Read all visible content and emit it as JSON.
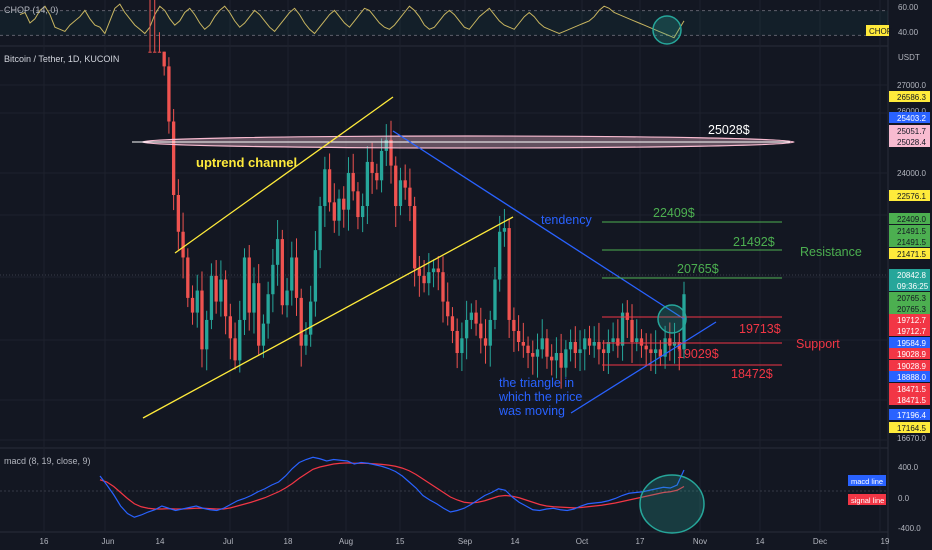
{
  "header": {
    "chop_label": "CHOP (14, 0)",
    "symbol_label": "Bitcoin / Tether, 1D, KUCOIN",
    "macd_label": "macd (8, 19, close, 9)"
  },
  "price_axis": {
    "currency": "USDT",
    "ticks": [
      "27000.0",
      "26000.0",
      "24000.0",
      "23000.0",
      "17000.0",
      "16670.0"
    ],
    "tags": [
      {
        "text": "26586.3",
        "bg": "#ffeb3b",
        "fg": "#131722"
      },
      {
        "text": "25403.2",
        "bg": "#2962ff",
        "fg": "#ffffff"
      },
      {
        "text": "25051.7",
        "bg": "#f8bbd0",
        "fg": "#131722"
      },
      {
        "text": "25028.4",
        "bg": "#f8bbd0",
        "fg": "#131722"
      },
      {
        "text": "22576.1",
        "bg": "#ffeb3b",
        "fg": "#131722"
      },
      {
        "text": "22409.0",
        "bg": "#4caf50",
        "fg": "#131722"
      },
      {
        "text": "21491.5",
        "bg": "#4caf50",
        "fg": "#131722"
      },
      {
        "text": "21491.5",
        "bg": "#4caf50",
        "fg": "#131722"
      },
      {
        "text": "21471.5",
        "bg": "#ffeb3b",
        "fg": "#131722"
      },
      {
        "text": "20842.8",
        "bg": "#26a69a",
        "fg": "#ffffff"
      },
      {
        "text": "09:36:25",
        "bg": "#26a69a",
        "fg": "#ffffff"
      },
      {
        "text": "20765.3",
        "bg": "#4caf50",
        "fg": "#131722"
      },
      {
        "text": "20765.3",
        "bg": "#4caf50",
        "fg": "#131722"
      },
      {
        "text": "19712.7",
        "bg": "#f23645",
        "fg": "#ffffff"
      },
      {
        "text": "19712.7",
        "bg": "#f23645",
        "fg": "#ffffff"
      },
      {
        "text": "19584.9",
        "bg": "#2962ff",
        "fg": "#ffffff"
      },
      {
        "text": "19028.9",
        "bg": "#f23645",
        "fg": "#ffffff"
      },
      {
        "text": "19028.9",
        "bg": "#f23645",
        "fg": "#ffffff"
      },
      {
        "text": "18888.0",
        "bg": "#2962ff",
        "fg": "#ffffff"
      },
      {
        "text": "18471.5",
        "bg": "#f23645",
        "fg": "#ffffff"
      },
      {
        "text": "18471.5",
        "bg": "#f23645",
        "fg": "#ffffff"
      },
      {
        "text": "17196.4",
        "bg": "#2962ff",
        "fg": "#ffffff"
      },
      {
        "text": "17164.5",
        "bg": "#ffeb3b",
        "fg": "#131722"
      }
    ]
  },
  "chop_axis": {
    "ticks": [
      "60.00",
      "40.00"
    ],
    "tag": {
      "text": "CHOP",
      "bg": "#ffeb3b",
      "fg": "#131722"
    }
  },
  "macd_axis": {
    "ticks": [
      "400.0",
      "0.0",
      "-400.0"
    ],
    "legend": [
      {
        "text": "macd line",
        "bg": "#2962ff",
        "fg": "#ffffff"
      },
      {
        "text": "signal line",
        "bg": "#f23645",
        "fg": "#ffffff"
      }
    ]
  },
  "time_axis": {
    "ticks": [
      "16",
      "Jun",
      "14",
      "Jul",
      "18",
      "Aug",
      "15",
      "Sep",
      "14",
      "Oct",
      "17",
      "Nov",
      "14",
      "Dec",
      "19"
    ]
  },
  "annotations": {
    "uptrend": "uptrend channel",
    "tendency": "tendency",
    "resistance": "Resistance",
    "support": "Support",
    "triangle": [
      "the triangle in",
      "which the price",
      "was moving"
    ],
    "levels": {
      "l25028": "25028$",
      "l22409": "22409$",
      "l21492": "21492$",
      "l20765": "20765$",
      "l19713": "19713$",
      "l19029": "19029$",
      "l18472": "18472$"
    }
  },
  "colors": {
    "background": "#131722",
    "up": "#26a69a",
    "down": "#ef5350",
    "channel": "#ffeb3b",
    "trend": "#2962ff",
    "resistance": "#4caf50",
    "support": "#f23645",
    "chop": "#c8b560"
  },
  "chart_data": {
    "type": "candlestick",
    "symbol": "Bitcoin / Tether, 1D, KUCOIN",
    "ylim": [
      16670,
      27500
    ],
    "resistance_levels": [
      22409,
      21492,
      20765
    ],
    "support_levels": [
      19713,
      19029,
      18472
    ],
    "supply_zone": 25028,
    "series_close": [
      29900,
      29400,
      28500,
      27000,
      25500,
      23500,
      22500,
      21800,
      20700,
      20300,
      20900,
      19300,
      20100,
      21300,
      20600,
      21200,
      20200,
      19600,
      19000,
      20100,
      21800,
      20300,
      21100,
      19400,
      20000,
      20800,
      21600,
      22300,
      20500,
      20900,
      21800,
      20700,
      19400,
      19700,
      20600,
      22000,
      23200,
      24200,
      23300,
      22800,
      23400,
      23100,
      24100,
      23600,
      22900,
      23200,
      24400,
      24100,
      23900,
      24700,
      25000,
      24300,
      23200,
      23900,
      23700,
      23200,
      21500,
      21300,
      21100,
      21400,
      21500,
      21400,
      20600,
      20200,
      19800,
      19200,
      19600,
      20100,
      20300,
      20000,
      19600,
      19400,
      20100,
      21200,
      22500,
      22600,
      20100,
      19800,
      19500,
      19400,
      19200,
      19100,
      19300,
      19600,
      19100,
      19000,
      19200,
      18800,
      19300,
      19500,
      19200,
      19300,
      19600,
      19400,
      19500,
      19300,
      19200,
      19500,
      19600,
      19400,
      20300,
      20100,
      19500,
      19600,
      19400,
      19300,
      19200,
      19300,
      19100,
      19600,
      19400,
      19500,
      19300,
      20800
    ],
    "macd_line": [
      200,
      80,
      -50,
      -200,
      -300,
      -350,
      -320,
      -280,
      -250,
      -200,
      -230,
      -260,
      -240,
      -220,
      -200,
      -230,
      -250,
      -260,
      -230,
      -180,
      -130,
      -100,
      -60,
      -10,
      30,
      80,
      120,
      200,
      300,
      380,
      420,
      450,
      430,
      400,
      420,
      410,
      400,
      360,
      380,
      370,
      350,
      330,
      300,
      260,
      200,
      120,
      40,
      -60,
      -120,
      -170,
      -230,
      -280,
      -260,
      -230,
      -180,
      -120,
      -60,
      -20,
      30,
      10,
      -80,
      -150,
      -200,
      -250,
      -260,
      -240,
      -230,
      -250,
      -260,
      -240,
      -200,
      -170,
      -160,
      -150,
      -130,
      -100,
      -60,
      -30,
      -20,
      -10,
      10,
      30,
      50,
      40,
      80,
      280
    ],
    "signal_line": [
      150,
      120,
      60,
      -20,
      -100,
      -170,
      -210,
      -230,
      -240,
      -240,
      -235,
      -240,
      -240,
      -235,
      -230,
      -230,
      -235,
      -240,
      -240,
      -225,
      -200,
      -175,
      -150,
      -120,
      -90,
      -50,
      -10,
      40,
      100,
      170,
      230,
      290,
      320,
      340,
      360,
      370,
      375,
      370,
      370,
      368,
      362,
      355,
      345,
      330,
      305,
      270,
      220,
      160,
      100,
      40,
      -20,
      -80,
      -120,
      -150,
      -160,
      -150,
      -130,
      -100,
      -70,
      -60,
      -70,
      -90,
      -120,
      -150,
      -180,
      -200,
      -210,
      -215,
      -220,
      -225,
      -220,
      -210,
      -200,
      -190,
      -175,
      -160,
      -140,
      -120,
      -100,
      -80,
      -60,
      -40,
      -20,
      -10,
      10,
      60
    ],
    "chop": [
      58,
      60,
      50,
      54,
      62,
      66,
      58,
      46,
      44,
      42,
      48,
      52,
      56,
      62,
      54,
      48,
      46,
      40,
      52,
      64,
      68,
      60,
      54,
      48,
      44,
      40,
      46,
      58,
      66,
      62,
      54,
      48,
      52,
      60,
      64,
      58,
      50,
      44,
      48,
      56,
      62,
      66,
      60,
      52,
      46,
      50,
      56,
      62,
      58,
      52,
      46,
      42,
      48,
      54,
      60,
      64,
      58,
      50,
      44,
      40,
      46,
      52,
      58,
      62,
      56,
      50,
      46,
      52,
      58,
      64,
      62,
      56,
      50,
      46,
      44,
      48,
      54,
      60,
      66,
      62,
      56,
      48,
      44,
      46,
      52,
      58,
      62,
      58,
      52,
      46,
      44,
      50,
      56,
      60,
      64,
      58,
      52,
      48,
      46,
      44,
      50,
      56,
      60,
      56,
      50,
      46,
      44,
      42,
      40,
      42,
      44,
      46,
      48,
      50,
      52,
      56,
      62,
      66,
      64,
      60,
      58,
      56,
      54,
      52,
      50,
      48,
      46,
      44,
      42,
      40,
      38,
      36,
      44,
      52
    ]
  }
}
